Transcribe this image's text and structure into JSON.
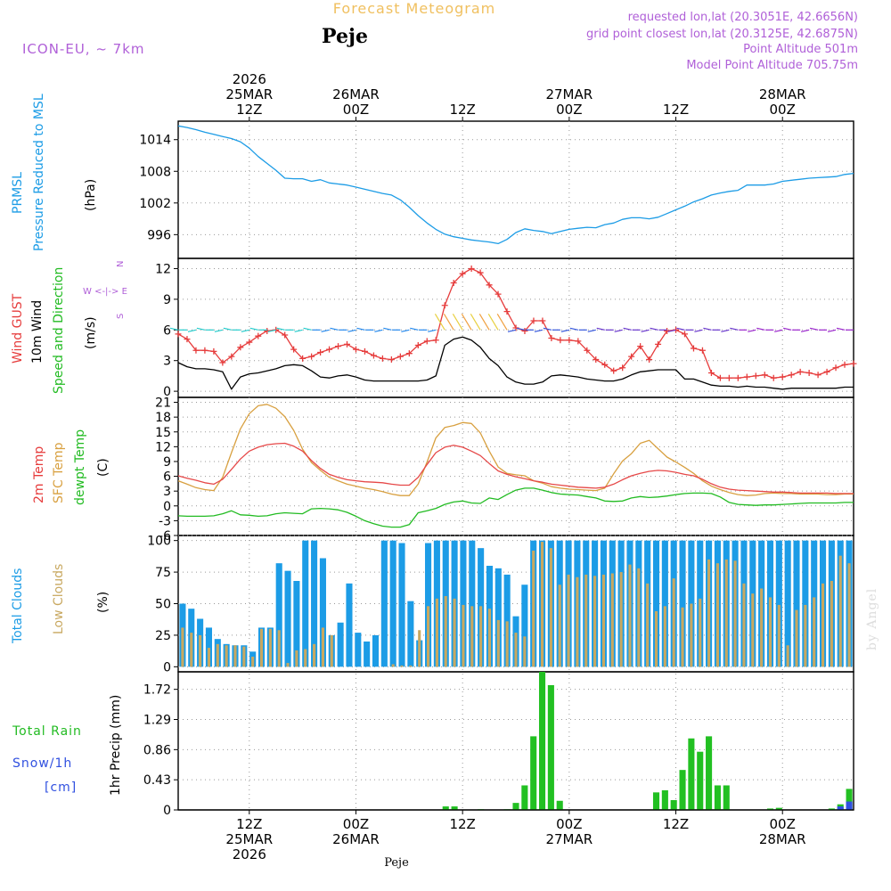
{
  "header": {
    "title": "Forecast Meteogram",
    "location": "Peje",
    "model": "ICON-EU, ~ 7km",
    "requested": "requested lon,lat (20.3051E, 42.6656N)",
    "gridpoint": "grid point closest lon,lat (20.3125E, 42.6875N)",
    "point_alt": "Point Altitude 501m",
    "model_alt": "Model Point Altitude 705.75m",
    "watermark": "by Angel",
    "footer": "Peje"
  },
  "colors": {
    "pressure": "#1c9ce6",
    "gust": "#e63c3c",
    "wind": "#000000",
    "winddir": "#22bb22",
    "t2m": "#e64848",
    "sfc": "#d8a040",
    "dewpt": "#22bb22",
    "total_cloud": "#1c9ce6",
    "low_cloud": "#c8a860",
    "rain": "#22c022",
    "snow": "#3050e0",
    "label_purple": "#b060d8",
    "title_orange": "#f0c060"
  },
  "chart_data": {
    "type": "meteogram",
    "time": {
      "start": "2026-03-25 04Z",
      "end": "2026-03-28 06Z",
      "step_hours": 1,
      "top_ticks": [
        {
          "h": 8,
          "lines": [
            "2026",
            "25MAR",
            "12Z"
          ]
        },
        {
          "h": 20,
          "lines": [
            "26MAR",
            "00Z"
          ]
        },
        {
          "h": 32,
          "lines": [
            "12Z"
          ]
        },
        {
          "h": 44,
          "lines": [
            "27MAR",
            "00Z"
          ]
        },
        {
          "h": 56,
          "lines": [
            "12Z"
          ]
        },
        {
          "h": 68,
          "lines": [
            "28MAR",
            "00Z"
          ]
        }
      ],
      "bottom_ticks": [
        {
          "h": 8,
          "lines": [
            "12Z",
            "25MAR",
            "2026"
          ]
        },
        {
          "h": 20,
          "lines": [
            "00Z",
            "26MAR"
          ]
        },
        {
          "h": 32,
          "lines": [
            "12Z"
          ]
        },
        {
          "h": 44,
          "lines": [
            "00Z",
            "27MAR"
          ]
        },
        {
          "h": 56,
          "lines": [
            "12Z"
          ]
        },
        {
          "h": 68,
          "lines": [
            "00Z",
            "28MAR"
          ]
        }
      ]
    },
    "panels": {
      "pressure": {
        "labels": [
          "PRMSL",
          "Pressure Reduced to MSL",
          "(hPa)"
        ],
        "ylim": [
          991.5,
          1017.5
        ],
        "ticks": [
          996,
          1002,
          1008,
          1014
        ],
        "series": [
          {
            "name": "PRMSL",
            "values": [
              1016.6,
              1016.3,
              1015.9,
              1015.4,
              1015.0,
              1014.6,
              1014.2,
              1013.6,
              1012.4,
              1010.8,
              1009.5,
              1008.2,
              1006.7,
              1006.6,
              1006.6,
              1006.1,
              1006.4,
              1005.8,
              1005.6,
              1005.4,
              1005.0,
              1004.6,
              1004.2,
              1003.8,
              1003.5,
              1002.6,
              1001.2,
              999.6,
              998.2,
              997.0,
              996.1,
              995.6,
              995.3,
              995.0,
              994.8,
              994.6,
              994.3,
              995.1,
              996.4,
              997.1,
              996.8,
              996.6,
              996.2,
              996.6,
              997.0,
              997.2,
              997.4,
              997.3,
              997.9,
              998.2,
              998.9,
              999.2,
              999.2,
              999.0,
              999.3,
              1000.0,
              1000.7,
              1001.4,
              1002.2,
              1002.8,
              1003.5,
              1003.9,
              1004.2,
              1004.4,
              1005.4,
              1005.4,
              1005.4,
              1005.6,
              1006.1,
              1006.3,
              1006.5,
              1006.7,
              1006.8,
              1006.9,
              1007.0,
              1007.4,
              1007.6
            ]
          }
        ]
      },
      "wind": {
        "labels": [
          "Wind GUST",
          "10m Wind",
          "Speed and Direction",
          "(m/s)"
        ],
        "compass": [
          "N",
          "W <-|-> E",
          "S"
        ],
        "ylim": [
          -0.6,
          13.0
        ],
        "ticks": [
          0,
          3,
          6,
          9,
          12
        ],
        "series": [
          {
            "name": "Wind GUST",
            "values": [
              5.6,
              5.1,
              4.0,
              4.0,
              3.9,
              2.8,
              3.4,
              4.3,
              4.8,
              5.4,
              5.9,
              6.0,
              5.5,
              4.1,
              3.2,
              3.4,
              3.8,
              4.1,
              4.4,
              4.6,
              4.1,
              3.9,
              3.5,
              3.2,
              3.1,
              3.4,
              3.7,
              4.5,
              4.9,
              5.0,
              8.4,
              10.6,
              11.5,
              12.0,
              11.6,
              10.4,
              9.5,
              7.8,
              6.2,
              5.9,
              6.9,
              6.9,
              5.2,
              5.0,
              5.0,
              4.9,
              4.0,
              3.1,
              2.6,
              2.0,
              2.3,
              3.4,
              4.4,
              3.1,
              4.6,
              5.9,
              6.0,
              5.6,
              4.2,
              4.0,
              1.8,
              1.3,
              1.3,
              1.3,
              1.4,
              1.5,
              1.6,
              1.3,
              1.4,
              1.6,
              1.9,
              1.8,
              1.6,
              1.9,
              2.3,
              2.6,
              2.7
            ]
          },
          {
            "name": "10m Wind",
            "values": [
              2.8,
              2.4,
              2.2,
              2.2,
              2.1,
              1.9,
              0.2,
              1.4,
              1.7,
              1.8,
              2.0,
              2.2,
              2.5,
              2.6,
              2.5,
              2.0,
              1.4,
              1.3,
              1.5,
              1.6,
              1.4,
              1.1,
              1.0,
              1.0,
              1.0,
              1.0,
              1.0,
              1.0,
              1.1,
              1.5,
              4.5,
              5.1,
              5.3,
              5.0,
              4.3,
              3.2,
              2.5,
              1.4,
              0.9,
              0.7,
              0.7,
              0.9,
              1.5,
              1.6,
              1.5,
              1.4,
              1.2,
              1.1,
              1.0,
              1.0,
              1.2,
              1.6,
              1.9,
              2.0,
              2.1,
              2.1,
              2.1,
              1.2,
              1.2,
              0.9,
              0.6,
              0.5,
              0.5,
              0.4,
              0.5,
              0.4,
              0.4,
              0.3,
              0.2,
              0.3,
              0.3,
              0.3,
              0.3,
              0.3,
              0.3,
              0.4,
              0.4
            ]
          }
        ]
      },
      "temperature": {
        "labels": [
          "2m Temp",
          "SFC Temp",
          "dewpt Temp",
          "(C)"
        ],
        "ylim": [
          -6,
          22
        ],
        "ticks": [
          -6,
          -3,
          0,
          3,
          6,
          9,
          12,
          15,
          18,
          21
        ],
        "series": [
          {
            "name": "2m Temp",
            "values": [
              6.1,
              5.6,
              5.2,
              4.7,
              4.4,
              5.4,
              7.4,
              9.5,
              11.1,
              11.9,
              12.4,
              12.6,
              12.7,
              12.1,
              11.1,
              9.2,
              7.6,
              6.4,
              5.8,
              5.3,
              5.1,
              4.9,
              4.8,
              4.7,
              4.4,
              4.2,
              4.2,
              5.8,
              8.4,
              10.8,
              11.9,
              12.3,
              11.9,
              11.1,
              10.2,
              8.6,
              7.1,
              6.4,
              5.9,
              5.5,
              5.1,
              4.8,
              4.4,
              4.2,
              4.0,
              3.8,
              3.7,
              3.6,
              3.8,
              4.4,
              5.3,
              6.1,
              6.6,
              7.0,
              7.2,
              7.1,
              6.8,
              6.4,
              6.1,
              5.4,
              4.5,
              3.8,
              3.4,
              3.2,
              3.1,
              3.0,
              2.9,
              2.8,
              2.8,
              2.7,
              2.6,
              2.6,
              2.6,
              2.6,
              2.5,
              2.5,
              2.5
            ]
          },
          {
            "name": "SFC Temp",
            "values": [
              5.1,
              4.4,
              3.7,
              3.3,
              3.1,
              5.8,
              10.8,
              15.6,
              18.7,
              20.3,
              20.6,
              19.8,
              18.1,
              15.3,
              11.5,
              8.8,
              7.2,
              5.8,
              5.1,
              4.4,
              4.0,
              3.6,
              3.3,
              2.9,
              2.4,
              2.1,
              2.1,
              4.4,
              8.9,
              13.8,
              15.9,
              16.3,
              16.9,
              16.7,
              14.8,
              11.1,
              7.9,
              6.6,
              6.3,
              6.1,
              5.1,
              4.6,
              3.9,
              3.6,
              3.4,
              3.3,
              3.2,
              3.1,
              3.6,
              6.5,
              9.1,
              10.6,
              12.7,
              13.3,
              11.6,
              9.9,
              8.9,
              7.8,
              6.6,
              5.1,
              4.0,
              3.3,
              2.7,
              2.3,
              2.1,
              2.2,
              2.5,
              2.6,
              2.5,
              2.5,
              2.4,
              2.4,
              2.4,
              2.3,
              2.3,
              2.4,
              2.4
            ]
          },
          {
            "name": "dewpt Temp",
            "values": [
              -2.0,
              -2.1,
              -2.1,
              -2.1,
              -2.0,
              -1.6,
              -1.0,
              -1.8,
              -1.9,
              -2.1,
              -2.0,
              -1.6,
              -1.4,
              -1.5,
              -1.6,
              -0.6,
              -0.5,
              -0.6,
              -0.8,
              -1.3,
              -2.1,
              -3.0,
              -3.6,
              -4.1,
              -4.3,
              -4.3,
              -3.8,
              -1.4,
              -1.0,
              -0.5,
              0.3,
              0.8,
              1.0,
              0.6,
              0.5,
              1.6,
              1.3,
              2.3,
              3.2,
              3.6,
              3.6,
              3.2,
              2.7,
              2.4,
              2.3,
              2.2,
              1.9,
              1.6,
              1.0,
              0.9,
              1.0,
              1.6,
              1.9,
              1.7,
              1.8,
              2.0,
              2.3,
              2.5,
              2.6,
              2.6,
              2.5,
              1.8,
              0.7,
              0.3,
              0.2,
              0.1,
              0.2,
              0.2,
              0.3,
              0.4,
              0.5,
              0.6,
              0.6,
              0.6,
              0.6,
              0.7,
              0.7
            ]
          }
        ]
      },
      "clouds": {
        "labels": [
          "Total Clouds",
          "Low Clouds",
          "(%)"
        ],
        "ylim": [
          -4,
          104
        ],
        "ticks": [
          0,
          25,
          50,
          75,
          100
        ],
        "total": [
          50,
          46,
          38,
          31,
          22,
          18,
          17,
          17,
          12,
          31,
          31,
          82,
          76,
          68,
          100,
          100,
          86,
          25,
          35,
          66,
          27,
          20,
          25,
          100,
          100,
          98,
          52,
          21,
          98,
          100,
          100,
          100,
          100,
          100,
          94,
          80,
          78,
          73,
          40,
          65,
          100,
          100,
          100,
          100,
          100,
          100,
          100,
          100,
          100,
          100,
          100,
          100,
          100,
          100,
          100,
          100,
          100,
          100,
          100,
          100,
          100,
          100,
          100,
          100,
          100,
          100,
          100,
          100,
          100,
          100,
          100,
          100,
          100,
          100,
          100,
          100,
          100
        ],
        "low": [
          31,
          27,
          25,
          15,
          18,
          17,
          17,
          16,
          8,
          30,
          30,
          29,
          3,
          13,
          14,
          18,
          31,
          25,
          0,
          0,
          0,
          0,
          0,
          0,
          2,
          1,
          1,
          29,
          48,
          54,
          56,
          54,
          49,
          48,
          48,
          46,
          37,
          36,
          27,
          24,
          92,
          99,
          94,
          65,
          73,
          71,
          73,
          72,
          73,
          74,
          75,
          81,
          78,
          66,
          44,
          48,
          70,
          47,
          50,
          54,
          85,
          82,
          85,
          84,
          66,
          58,
          62,
          55,
          49,
          17,
          45,
          49,
          55,
          66,
          68,
          88,
          82
        ]
      },
      "precip": {
        "labels": [
          "Total Rain",
          "Snow/1h",
          "[cm]",
          "1hr Precip (mm)"
        ],
        "ylim": [
          0,
          1.97
        ],
        "ticks": [
          0,
          0.43,
          0.86,
          1.29,
          1.72
        ],
        "tick_labels": [
          "0",
          "0.43",
          "0.86",
          "1.29",
          "1.72"
        ],
        "rain": [
          0,
          0,
          0,
          0,
          0,
          0,
          0,
          0,
          0,
          0,
          0,
          0,
          0,
          0,
          0,
          0,
          0,
          0,
          0,
          0,
          0,
          0,
          0,
          0,
          0,
          0,
          0,
          0,
          0,
          0,
          0.05,
          0.05,
          0,
          0,
          0.01,
          0,
          0,
          0.01,
          0.1,
          0.35,
          1.05,
          1.97,
          1.78,
          0.13,
          0,
          0,
          0,
          0,
          0,
          0,
          0,
          0,
          0,
          0,
          0.25,
          0.28,
          0.14,
          0.57,
          1.02,
          0.83,
          1.05,
          0.35,
          0.35,
          0,
          0,
          0,
          0,
          0.02,
          0.03,
          0,
          0,
          0,
          0,
          0,
          0.02,
          0.08,
          0.3
        ],
        "snow": [
          0,
          0,
          0,
          0,
          0,
          0,
          0,
          0,
          0,
          0,
          0,
          0,
          0,
          0,
          0,
          0,
          0,
          0,
          0,
          0,
          0,
          0,
          0,
          0,
          0,
          0,
          0,
          0,
          0,
          0,
          0,
          0,
          0,
          0,
          0,
          0,
          0,
          0,
          0,
          0,
          0,
          0,
          0,
          0,
          0,
          0,
          0,
          0,
          0,
          0,
          0,
          0,
          0,
          0,
          0,
          0,
          0,
          0,
          0,
          0,
          0,
          0,
          0,
          0,
          0,
          0,
          0,
          0,
          0,
          0,
          0,
          0,
          0,
          0,
          0,
          0.05,
          0.12
        ]
      }
    }
  }
}
